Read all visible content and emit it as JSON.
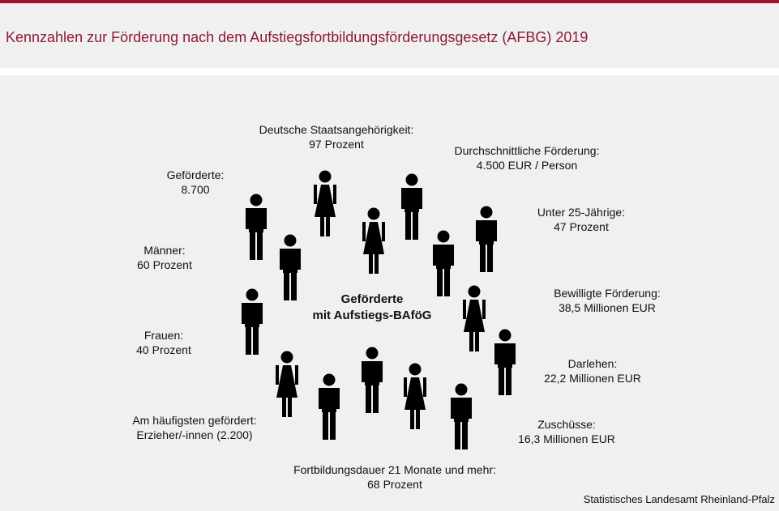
{
  "title": "Kennzahlen zur Förderung nach dem Aufstiegsfortbildungsförderungsgesetz (AFBG) 2019",
  "center": {
    "line1": "Geförderte",
    "line2": "mit Aufstiegs-BAföG"
  },
  "stats": [
    {
      "line1": "Deutsche Staatsangehörigkeit:",
      "line2": "97 Prozent"
    },
    {
      "line1": "Durchschnittliche Förderung:",
      "line2": "4.500 EUR / Person"
    },
    {
      "line1": "Unter 25-Jährige:",
      "line2": "47 Prozent"
    },
    {
      "line1": "Bewilligte Förderung:",
      "line2": "38,5 Millionen EUR"
    },
    {
      "line1": "Darlehen:",
      "line2": "22,2 Millionen EUR"
    },
    {
      "line1": "Zuschüsse:",
      "line2": "16,3 Millionen EUR"
    },
    {
      "line1": "Fortbildungsdauer 21 Monate und mehr:",
      "line2": "68 Prozent"
    },
    {
      "line1": "Am häufigsten gefördert:",
      "line2": "Erzieher/-innen (2.200)"
    },
    {
      "line1": "Frauen:",
      "line2": "40 Prozent"
    },
    {
      "line1": "Männer:",
      "line2": "60 Prozent"
    },
    {
      "line1": "Geförderte:",
      "line2": "8.700"
    }
  ],
  "source": "Statistisches Landesamt Rheinland-Pfalz",
  "colors": {
    "accent": "#a1132f",
    "title": "#8e1a34",
    "background": "#f0f0f0",
    "figure": "#000000"
  }
}
